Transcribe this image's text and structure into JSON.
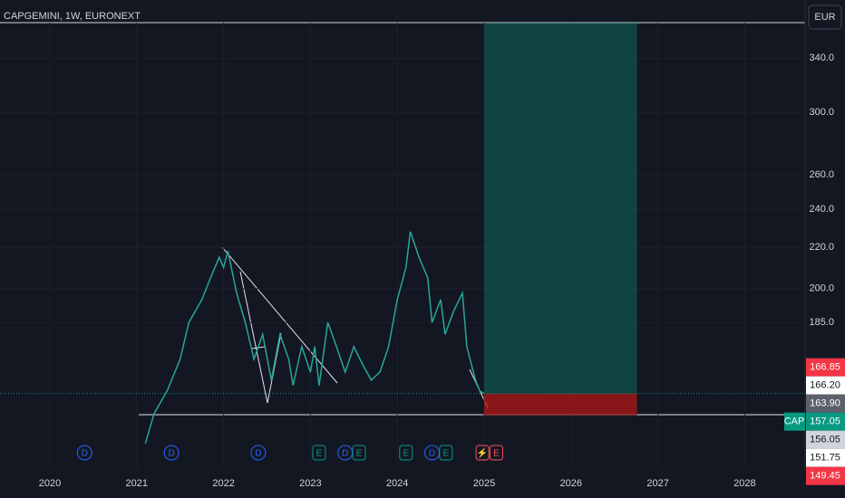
{
  "chart_data": {
    "type": "line",
    "title": "CAPGEMINI, 1W, EURONEXT",
    "currency": "EUR",
    "symbol": "CAP",
    "log_scale": true,
    "series": [
      {
        "name": "CAP",
        "color": "#26a69a",
        "x": [
          2021.1,
          2021.2,
          2021.35,
          2021.5,
          2021.6,
          2021.75,
          2021.85,
          2021.95,
          2022.0,
          2022.05,
          2022.15,
          2022.25,
          2022.35,
          2022.45,
          2022.55,
          2022.65,
          2022.75,
          2022.8,
          2022.9,
          2023.0,
          2023.05,
          2023.1,
          2023.2,
          2023.3,
          2023.4,
          2023.5,
          2023.6,
          2023.7,
          2023.8,
          2023.9,
          2024.0,
          2024.1,
          2024.15,
          2024.25,
          2024.35,
          2024.4,
          2024.5,
          2024.55,
          2024.65,
          2024.75,
          2024.8,
          2024.9,
          2024.95,
          2025.0
        ],
        "values": [
          140,
          150,
          158,
          170,
          185,
          195,
          205,
          215,
          210,
          218,
          198,
          185,
          170,
          180,
          162,
          180,
          170,
          160,
          175,
          165,
          175,
          160,
          185,
          175,
          165,
          175,
          168,
          162,
          165,
          175,
          195,
          210,
          228,
          215,
          205,
          185,
          195,
          180,
          190,
          198,
          175,
          162,
          158,
          157.05
        ]
      }
    ],
    "xlim": [
      2019.426,
      2028.695
    ],
    "xticks": [
      2020,
      2021,
      2022,
      2023,
      2024,
      2025,
      2026,
      2027,
      2028
    ],
    "ylim": [
      132,
      369
    ],
    "yticks": [
      {
        "value": 340,
        "label": "340.0"
      },
      {
        "value": 300,
        "label": "300.0"
      },
      {
        "value": 260,
        "label": "260.0"
      },
      {
        "value": 240,
        "label": "240.0"
      },
      {
        "value": 220,
        "label": "220.0"
      },
      {
        "value": 200,
        "label": "200.0"
      },
      {
        "value": 185,
        "label": "185.0"
      }
    ],
    "price_tags": [
      {
        "value": 166.85,
        "color": "#f23645"
      },
      {
        "value": {
          "value": 166.2,
          "label": "166.20"
        },
        "color": "#ffffff"
      },
      {
        "value": {
          "value": 163.9,
          "label": "163.90"
        },
        "color": "#5d606b"
      },
      {
        "value": 157.05,
        "color": "#089981"
      },
      {
        "value": 156.05,
        "color": "#d1d4dc"
      },
      {
        "value": 151.75,
        "color": "#ffffff"
      },
      {
        "value": 149.45,
        "color": "#f23645"
      }
    ],
    "position": {
      "entry": 157.05,
      "stop": 149.45,
      "start": 2025.0,
      "end": 2026.76
    },
    "events": [
      {
        "x": 2020.4,
        "label": "D"
      },
      {
        "x": 2021.4,
        "label": "D"
      },
      {
        "x": 2022.4,
        "label": "D"
      },
      {
        "x": 2023.1,
        "label": "E"
      },
      {
        "x": 2023.4,
        "label": "D"
      },
      {
        "x": 2023.56,
        "label": "E"
      },
      {
        "x": 2024.1,
        "label": "E"
      },
      {
        "x": 2024.4,
        "label": "D"
      },
      {
        "x": 2024.56,
        "label": "E"
      },
      {
        "x": 2024.98,
        "label": "⚡"
      },
      {
        "x": 2025.14,
        "label": "E"
      }
    ]
  }
}
